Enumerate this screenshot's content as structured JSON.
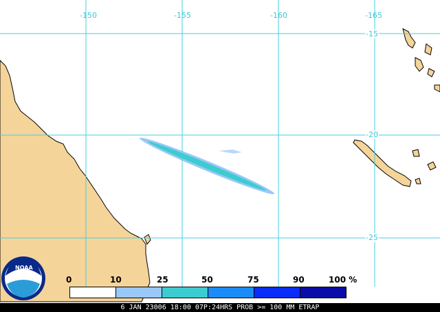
{
  "longitude_labels": [
    "-150",
    "-155",
    "-160",
    "-165"
  ],
  "latitude_labels": [
    "-15",
    "-20",
    "-25"
  ],
  "legend": {
    "ticks": [
      "0",
      "10",
      "25",
      "50",
      "75",
      "90",
      "100 %"
    ],
    "colors": [
      "#ffffff",
      "#9ac8f8",
      "#3cccd0",
      "#1a8cf8",
      "#0a2cf8",
      "#0a0ca8"
    ]
  },
  "footer_text": "6 JAN 23006 18:00 07P:24HRS PROB >= 100 MM ETRAP",
  "logo_text": "NOAA",
  "colors": {
    "ocean": "#ffffff",
    "land": "#f5d49a",
    "grid": "#40d0e0",
    "coast": "#000000"
  }
}
